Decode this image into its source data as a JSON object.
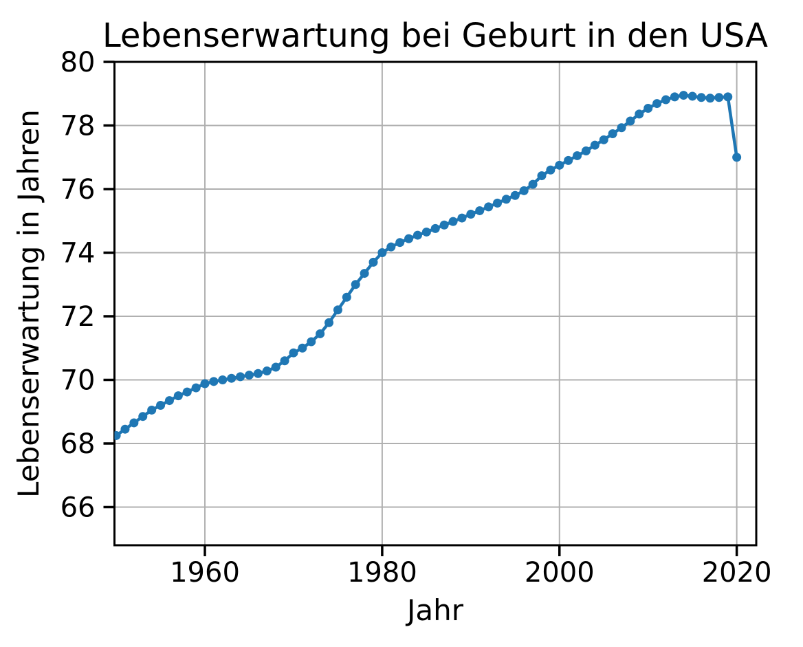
{
  "chart_data": {
    "type": "line",
    "title": "Lebenserwartung bei Geburt in den USA",
    "xlabel": "Jahr",
    "ylabel": "Lebenserwartung in Jahren",
    "legend": null,
    "grid": true,
    "marker": "o",
    "line_color": "#1f77b4",
    "grid_color": "#b0b0b0",
    "axis_color": "#000000",
    "background_color": "#ffffff",
    "xlim": [
      1949.8,
      2022.2
    ],
    "ylim": [
      64.8,
      80.0
    ],
    "xticks": [
      1960,
      1980,
      2000,
      2020
    ],
    "yticks": [
      66,
      68,
      70,
      72,
      74,
      76,
      78,
      80
    ],
    "x": [
      1950,
      1951,
      1952,
      1953,
      1954,
      1955,
      1956,
      1957,
      1958,
      1959,
      1960,
      1961,
      1962,
      1963,
      1964,
      1965,
      1966,
      1967,
      1968,
      1969,
      1970,
      1971,
      1972,
      1973,
      1974,
      1975,
      1976,
      1977,
      1978,
      1979,
      1980,
      1981,
      1982,
      1983,
      1984,
      1985,
      1986,
      1987,
      1988,
      1989,
      1990,
      1991,
      1992,
      1993,
      1994,
      1995,
      1996,
      1997,
      1998,
      1999,
      2000,
      2001,
      2002,
      2003,
      2004,
      2005,
      2006,
      2007,
      2008,
      2009,
      2010,
      2011,
      2012,
      2013,
      2014,
      2015,
      2016,
      2017,
      2018,
      2019,
      2020
    ],
    "y": [
      68.25,
      68.45,
      68.65,
      68.85,
      69.05,
      69.2,
      69.35,
      69.5,
      69.62,
      69.75,
      69.88,
      69.95,
      70.0,
      70.05,
      70.1,
      70.15,
      70.2,
      70.28,
      70.4,
      70.6,
      70.85,
      71.0,
      71.2,
      71.45,
      71.8,
      72.2,
      72.6,
      73.0,
      73.35,
      73.7,
      74.0,
      74.18,
      74.32,
      74.44,
      74.55,
      74.65,
      74.76,
      74.87,
      74.98,
      75.09,
      75.21,
      75.32,
      75.44,
      75.56,
      75.68,
      75.8,
      75.95,
      76.15,
      76.42,
      76.6,
      76.75,
      76.9,
      77.05,
      77.2,
      77.38,
      77.55,
      77.74,
      77.93,
      78.14,
      78.36,
      78.54,
      78.69,
      78.81,
      78.9,
      78.95,
      78.92,
      78.88,
      78.86,
      78.88,
      78.9,
      77.0
    ]
  }
}
